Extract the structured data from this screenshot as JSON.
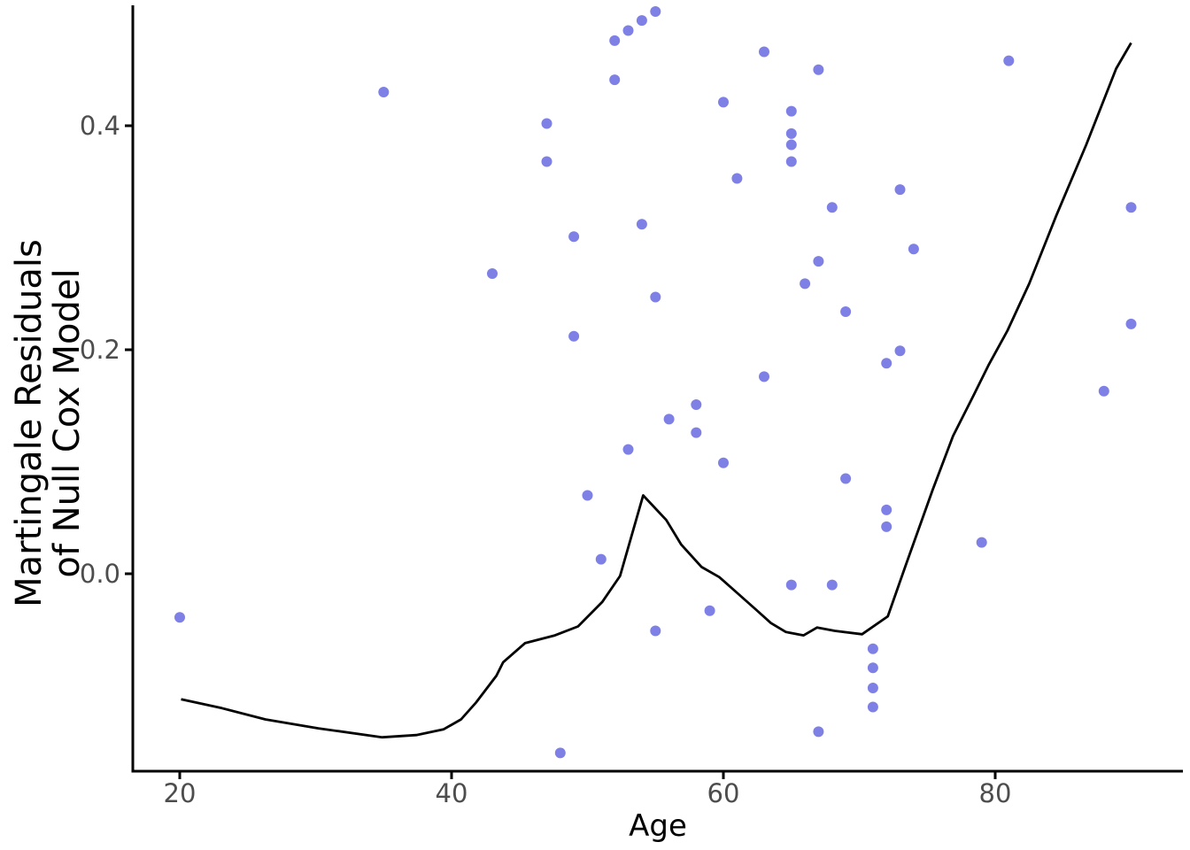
{
  "chart_data": {
    "type": "scatter",
    "title": "",
    "xlabel": "Age",
    "ylabel_lines": [
      "Martingale Residuals",
      "of Null Cox Model"
    ],
    "legend": "none",
    "grid": false,
    "x_axis": {
      "ticks": [
        20,
        40,
        60,
        80
      ],
      "tick_labels": [
        "20",
        "40",
        "60",
        "80"
      ],
      "range": [
        16.5,
        93.8
      ]
    },
    "y_axis": {
      "ticks": [
        0.0,
        0.2,
        0.4
      ],
      "tick_labels": [
        "0.0",
        "0.2",
        "0.4"
      ],
      "range": [
        -0.176,
        0.512
      ]
    },
    "colors": {
      "point": "#7e80e6",
      "smooth_line": "#000000",
      "axis": "#000000",
      "tick_label": "#4d4d4d",
      "background": "#ffffff"
    },
    "points": [
      [
        35,
        0.43
      ],
      [
        43,
        0.268
      ],
      [
        55,
        0.502
      ],
      [
        54,
        0.494
      ],
      [
        53,
        0.485
      ],
      [
        52,
        0.476
      ],
      [
        63,
        0.466
      ],
      [
        67,
        0.45
      ],
      [
        52,
        0.441
      ],
      [
        60,
        0.421
      ],
      [
        65,
        0.413
      ],
      [
        47,
        0.402
      ],
      [
        65,
        0.393
      ],
      [
        65,
        0.383
      ],
      [
        65,
        0.368
      ],
      [
        47,
        0.368
      ],
      [
        61,
        0.353
      ],
      [
        68,
        0.327
      ],
      [
        54,
        0.312
      ],
      [
        49,
        0.301
      ],
      [
        67,
        0.279
      ],
      [
        66,
        0.259
      ],
      [
        81,
        0.458
      ],
      [
        73,
        0.343
      ],
      [
        90,
        0.327
      ],
      [
        74,
        0.29
      ],
      [
        55,
        0.247
      ],
      [
        69,
        0.234
      ],
      [
        49,
        0.212
      ],
      [
        63,
        0.176
      ],
      [
        58,
        0.151
      ],
      [
        56,
        0.138
      ],
      [
        58,
        0.126
      ],
      [
        53,
        0.111
      ],
      [
        60,
        0.099
      ],
      [
        69,
        0.085
      ],
      [
        50,
        0.07
      ],
      [
        51,
        0.013
      ],
      [
        90,
        0.223
      ],
      [
        73,
        0.199
      ],
      [
        72,
        0.188
      ],
      [
        88,
        0.163
      ],
      [
        72,
        0.057
      ],
      [
        72,
        0.042
      ],
      [
        79,
        0.028
      ],
      [
        20,
        -0.039
      ],
      [
        65,
        -0.01
      ],
      [
        68,
        -0.01
      ],
      [
        59,
        -0.033
      ],
      [
        55,
        -0.051
      ],
      [
        67,
        -0.141
      ],
      [
        48,
        -0.16
      ],
      [
        71,
        -0.067
      ],
      [
        71,
        -0.084
      ],
      [
        71,
        -0.102
      ],
      [
        71,
        -0.119
      ]
    ],
    "smooth_line": [
      [
        20.1,
        -0.112
      ],
      [
        23.1,
        -0.12
      ],
      [
        26.3,
        -0.13
      ],
      [
        30.2,
        -0.138
      ],
      [
        34.9,
        -0.146
      ],
      [
        37.4,
        -0.144
      ],
      [
        39.4,
        -0.139
      ],
      [
        40.7,
        -0.13
      ],
      [
        41.8,
        -0.115
      ],
      [
        43.3,
        -0.091
      ],
      [
        43.8,
        -0.079
      ],
      [
        45.4,
        -0.062
      ],
      [
        47.6,
        -0.055
      ],
      [
        49.3,
        -0.047
      ],
      [
        51.1,
        -0.025
      ],
      [
        52.4,
        -0.002
      ],
      [
        54.1,
        0.07
      ],
      [
        55.8,
        0.048
      ],
      [
        56.9,
        0.026
      ],
      [
        58.4,
        0.006
      ],
      [
        59.7,
        -0.003
      ],
      [
        61.0,
        -0.017
      ],
      [
        62.4,
        -0.032
      ],
      [
        63.5,
        -0.044
      ],
      [
        64.6,
        -0.052
      ],
      [
        65.9,
        -0.055
      ],
      [
        66.9,
        -0.048
      ],
      [
        68.2,
        -0.051
      ],
      [
        70.2,
        -0.054
      ],
      [
        72.1,
        -0.038
      ],
      [
        73.4,
        0.007
      ],
      [
        75.4,
        0.075
      ],
      [
        76.9,
        0.123
      ],
      [
        78.4,
        0.159
      ],
      [
        79.5,
        0.186
      ],
      [
        80.9,
        0.217
      ],
      [
        81.7,
        0.238
      ],
      [
        82.5,
        0.259
      ],
      [
        84.5,
        0.32
      ],
      [
        86.7,
        0.383
      ],
      [
        88.9,
        0.451
      ],
      [
        90.0,
        0.474
      ]
    ]
  }
}
